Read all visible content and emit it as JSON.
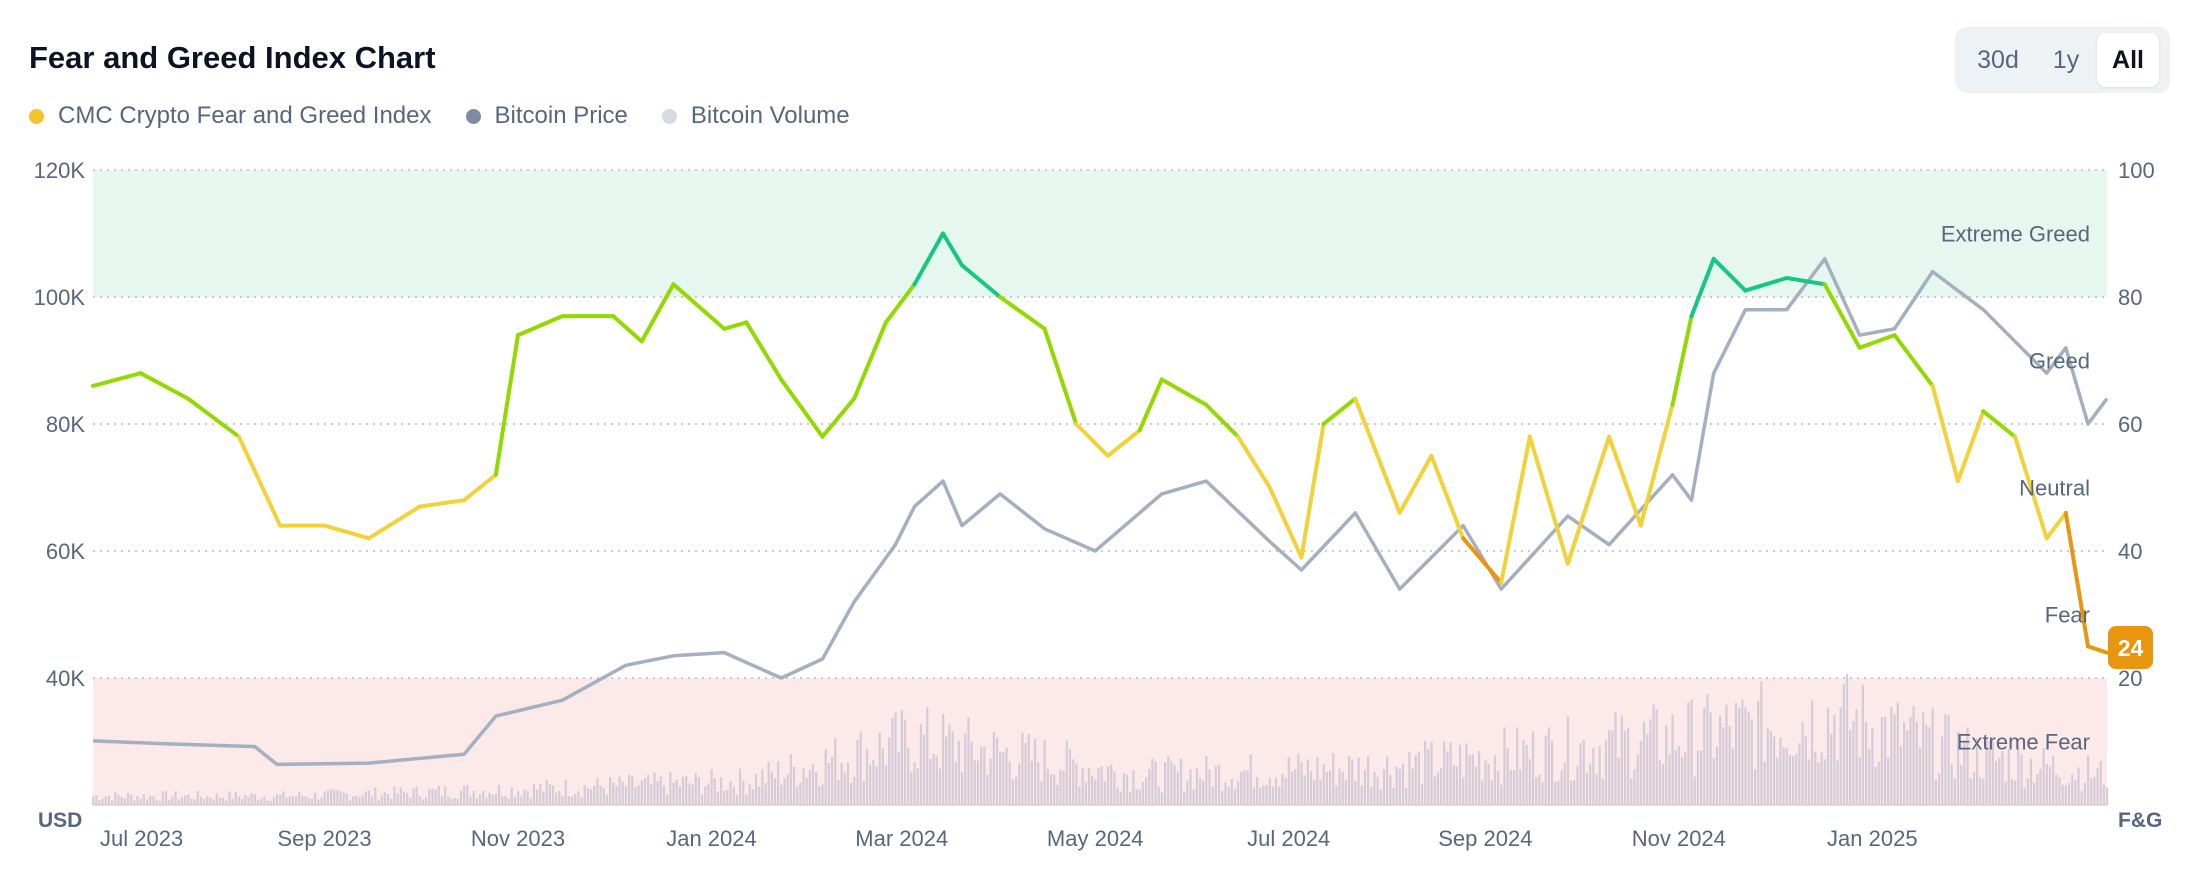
{
  "title": "Fear and Greed Index Chart",
  "legend": [
    {
      "label": "CMC Crypto Fear and Greed Index",
      "color": "#f2c42a"
    },
    {
      "label": "Bitcoin Price",
      "color": "#808a9d"
    },
    {
      "label": "Bitcoin Volume",
      "color": "#d5dae3"
    }
  ],
  "range_buttons": {
    "b30d": "30d",
    "b1y": "1y",
    "ball": "All",
    "active": "All"
  },
  "chart_data": {
    "type": "line",
    "x_ticks": [
      "Jul 2023",
      "Sep 2023",
      "Nov 2023",
      "Jan 2024",
      "Mar 2024",
      "May 2024",
      "Jul 2024",
      "Sep 2024",
      "Nov 2024",
      "Jan 2025"
    ],
    "x_range": [
      "2023-06-20",
      "2025-03-16"
    ],
    "left_axis": {
      "unit_label": "USD",
      "ticks": [
        "120K",
        "100K",
        "80K",
        "60K",
        "40K"
      ],
      "ylim": [
        20000,
        120000
      ]
    },
    "right_axis": {
      "unit_label": "F&G",
      "ticks": [
        "100",
        "80",
        "60",
        "40",
        "20"
      ],
      "ylim": [
        0,
        100
      ]
    },
    "zones": [
      {
        "label": "Extreme Greed",
        "from": 80,
        "to": 100,
        "color": "#e6f7f0"
      },
      {
        "label": "Greed",
        "from": 60,
        "to": 80
      },
      {
        "label": "Neutral",
        "from": 40,
        "to": 60
      },
      {
        "label": "Fear",
        "from": 20,
        "to": 40
      },
      {
        "label": "Extreme Fear",
        "from": 0,
        "to": 20,
        "color": "#fce9e9"
      }
    ],
    "current_value": "24",
    "grid": "dotted horizontal",
    "series": [
      {
        "name": "CMC Crypto Fear and Greed Index",
        "axis": "right",
        "x": [
          "2023-06-20",
          "2023-07-05",
          "2023-07-20",
          "2023-08-05",
          "2023-08-18",
          "2023-09-01",
          "2023-09-15",
          "2023-10-01",
          "2023-10-15",
          "2023-10-25",
          "2023-11-01",
          "2023-11-15",
          "2023-12-01",
          "2023-12-10",
          "2023-12-20",
          "2024-01-05",
          "2024-01-12",
          "2024-01-23",
          "2024-02-05",
          "2024-02-15",
          "2024-02-25",
          "2024-03-05",
          "2024-03-14",
          "2024-03-20",
          "2024-04-01",
          "2024-04-15",
          "2024-04-25",
          "2024-05-05",
          "2024-05-15",
          "2024-05-22",
          "2024-06-05",
          "2024-06-15",
          "2024-06-25",
          "2024-07-05",
          "2024-07-12",
          "2024-07-22",
          "2024-08-05",
          "2024-08-15",
          "2024-08-25",
          "2024-09-06",
          "2024-09-15",
          "2024-09-27",
          "2024-10-10",
          "2024-10-20",
          "2024-10-30",
          "2024-11-05",
          "2024-11-12",
          "2024-11-22",
          "2024-12-05",
          "2024-12-17",
          "2024-12-28",
          "2025-01-08",
          "2025-01-20",
          "2025-01-28",
          "2025-02-05",
          "2025-02-15",
          "2025-02-25",
          "2025-03-03",
          "2025-03-10",
          "2025-03-16"
        ],
        "y": [
          66,
          68,
          64,
          58,
          44,
          44,
          42,
          47,
          48,
          52,
          74,
          77,
          77,
          73,
          82,
          75,
          76,
          67,
          58,
          64,
          76,
          82,
          90,
          85,
          80,
          75,
          60,
          55,
          59,
          67,
          63,
          58,
          50,
          39,
          60,
          64,
          46,
          55,
          42,
          35,
          58,
          38,
          58,
          44,
          63,
          77,
          86,
          81,
          83,
          82,
          72,
          74,
          66,
          51,
          62,
          58,
          42,
          46,
          25,
          24
        ]
      },
      {
        "name": "Bitcoin Price",
        "axis": "left",
        "x": [
          "2023-06-20",
          "2023-07-15",
          "2023-08-10",
          "2023-08-17",
          "2023-09-15",
          "2023-10-15",
          "2023-10-25",
          "2023-11-15",
          "2023-12-05",
          "2023-12-20",
          "2024-01-05",
          "2024-01-23",
          "2024-02-05",
          "2024-02-15",
          "2024-02-28",
          "2024-03-05",
          "2024-03-14",
          "2024-03-20",
          "2024-04-01",
          "2024-04-15",
          "2024-05-01",
          "2024-05-15",
          "2024-05-22",
          "2024-06-05",
          "2024-06-25",
          "2024-07-05",
          "2024-07-22",
          "2024-08-05",
          "2024-08-25",
          "2024-09-06",
          "2024-09-27",
          "2024-10-10",
          "2024-10-30",
          "2024-11-05",
          "2024-11-12",
          "2024-11-22",
          "2024-12-05",
          "2024-12-17",
          "2024-12-28",
          "2025-01-08",
          "2025-01-20",
          "2025-02-05",
          "2025-02-25",
          "2025-03-03",
          "2025-03-10",
          "2025-03-16"
        ],
        "y": [
          30100,
          29600,
          29200,
          26400,
          26600,
          28000,
          34000,
          36500,
          42000,
          43500,
          44000,
          40000,
          43000,
          52000,
          61000,
          67000,
          71000,
          64000,
          69000,
          63500,
          60000,
          66000,
          69000,
          71000,
          61500,
          57000,
          66000,
          54000,
          64000,
          54000,
          65500,
          61000,
          72000,
          68000,
          88000,
          98000,
          98000,
          106000,
          94000,
          95000,
          104000,
          98000,
          88000,
          92000,
          80000,
          84000
        ]
      },
      {
        "name": "Bitcoin Volume",
        "axis": "left",
        "x": [
          "2023-06-20",
          "2023-08-20",
          "2023-10-25",
          "2024-01-12",
          "2024-03-05",
          "2024-05-15",
          "2024-08-05",
          "2024-11-12",
          "2024-12-20",
          "2025-02-05",
          "2025-03-16"
        ],
        "y": [
          3,
          3,
          5,
          8,
          22,
          10,
          13,
          24,
          30,
          16,
          10
        ]
      }
    ]
  }
}
